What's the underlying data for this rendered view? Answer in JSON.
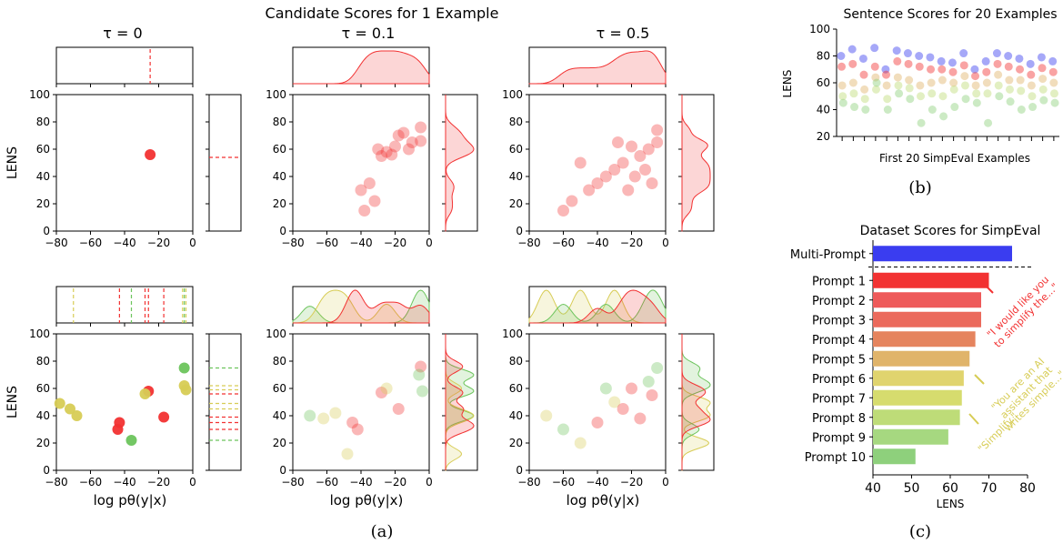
{
  "figure": {
    "panel_a_label": "(a)",
    "panel_b_label": "(b)",
    "panel_c_label": "(c)"
  },
  "colors": {
    "multi": "#3a3df0",
    "p1": "#f23232",
    "p2": "#ee5a5a",
    "p3": "#eb6a5c",
    "p4": "#e5845e",
    "p5": "#e0b46a",
    "p6": "#e0d46e",
    "p7": "#d6dc6e",
    "p8": "#bedc78",
    "p9": "#a6d880",
    "p10": "#8ed07c",
    "red": "#f23232",
    "green": "#6cc45c",
    "olive": "#d7cc55"
  },
  "chart_data": [
    {
      "type": "scatter",
      "panel": "a",
      "title": "Candidate Scores for 1 Example",
      "column_titles": [
        "τ = 0",
        "τ = 0.1",
        "τ = 0.5"
      ],
      "xlabel": "log pθ(y|x)",
      "ylabel": "LENS",
      "xlim": [
        -80,
        0
      ],
      "ylim": [
        0,
        100
      ],
      "xticks": [
        "−80",
        "−60",
        "−40",
        "−20",
        "0"
      ],
      "yticks": [
        "0",
        "20",
        "40",
        "60",
        "80",
        "100"
      ],
      "rows": [
        {
          "row": "single-prompt",
          "panels": [
            {
              "tau": "0",
              "points": [
                {
                  "x": -25,
                  "y": 56,
                  "c": "red"
                }
              ],
              "marginal_x_lines": [
                {
                  "x": -25,
                  "c": "red"
                }
              ],
              "marginal_y_lines": [
                {
                  "y": 54,
                  "c": "red"
                }
              ]
            },
            {
              "tau": "0.1",
              "points": [
                {
                  "x": -5,
                  "y": 76,
                  "c": "red"
                },
                {
                  "x": -5,
                  "y": 66,
                  "c": "red"
                },
                {
                  "x": -18,
                  "y": 70,
                  "c": "red"
                },
                {
                  "x": -20,
                  "y": 62,
                  "c": "red"
                },
                {
                  "x": -25,
                  "y": 58,
                  "c": "red"
                },
                {
                  "x": -22,
                  "y": 56,
                  "c": "red"
                },
                {
                  "x": -28,
                  "y": 55,
                  "c": "red"
                },
                {
                  "x": -30,
                  "y": 60,
                  "c": "red"
                },
                {
                  "x": -15,
                  "y": 72,
                  "c": "red"
                },
                {
                  "x": -10,
                  "y": 65,
                  "c": "red"
                },
                {
                  "x": -35,
                  "y": 35,
                  "c": "red"
                },
                {
                  "x": -40,
                  "y": 30,
                  "c": "red"
                },
                {
                  "x": -32,
                  "y": 22,
                  "c": "red"
                },
                {
                  "x": -38,
                  "y": 15,
                  "c": "red"
                },
                {
                  "x": -12,
                  "y": 60,
                  "c": "red"
                }
              ]
            },
            {
              "tau": "0.5",
              "points": [
                {
                  "x": -5,
                  "y": 74,
                  "c": "red"
                },
                {
                  "x": -5,
                  "y": 65,
                  "c": "red"
                },
                {
                  "x": -10,
                  "y": 60,
                  "c": "red"
                },
                {
                  "x": -15,
                  "y": 55,
                  "c": "red"
                },
                {
                  "x": -20,
                  "y": 62,
                  "c": "red"
                },
                {
                  "x": -25,
                  "y": 50,
                  "c": "red"
                },
                {
                  "x": -30,
                  "y": 45,
                  "c": "red"
                },
                {
                  "x": -35,
                  "y": 40,
                  "c": "red"
                },
                {
                  "x": -40,
                  "y": 35,
                  "c": "red"
                },
                {
                  "x": -45,
                  "y": 30,
                  "c": "red"
                },
                {
                  "x": -55,
                  "y": 22,
                  "c": "red"
                },
                {
                  "x": -60,
                  "y": 15,
                  "c": "red"
                },
                {
                  "x": -22,
                  "y": 30,
                  "c": "red"
                },
                {
                  "x": -18,
                  "y": 40,
                  "c": "red"
                },
                {
                  "x": -28,
                  "y": 65,
                  "c": "red"
                },
                {
                  "x": -12,
                  "y": 45,
                  "c": "red"
                },
                {
                  "x": -8,
                  "y": 35,
                  "c": "red"
                },
                {
                  "x": -50,
                  "y": 50,
                  "c": "red"
                }
              ]
            }
          ]
        },
        {
          "row": "multi-prompt",
          "panels": [
            {
              "tau": "0",
              "points": [
                {
                  "x": -78,
                  "y": 49,
                  "c": "olive"
                },
                {
                  "x": -72,
                  "y": 45,
                  "c": "olive"
                },
                {
                  "x": -68,
                  "y": 40,
                  "c": "olive"
                },
                {
                  "x": -43,
                  "y": 35,
                  "c": "red"
                },
                {
                  "x": -44,
                  "y": 30,
                  "c": "red"
                },
                {
                  "x": -36,
                  "y": 22,
                  "c": "green"
                },
                {
                  "x": -26,
                  "y": 58,
                  "c": "red"
                },
                {
                  "x": -28,
                  "y": 56,
                  "c": "olive"
                },
                {
                  "x": -17,
                  "y": 39,
                  "c": "red"
                },
                {
                  "x": -5,
                  "y": 75,
                  "c": "green"
                },
                {
                  "x": -5,
                  "y": 62,
                  "c": "olive"
                },
                {
                  "x": -4,
                  "y": 59,
                  "c": "olive"
                }
              ],
              "marginal_x_lines": [
                {
                  "x": -70,
                  "c": "olive"
                },
                {
                  "x": -43,
                  "c": "red"
                },
                {
                  "x": -36,
                  "c": "green"
                },
                {
                  "x": -28,
                  "c": "red"
                },
                {
                  "x": -26,
                  "c": "red"
                },
                {
                  "x": -17,
                  "c": "red"
                },
                {
                  "x": -6,
                  "c": "olive"
                },
                {
                  "x": -5,
                  "c": "green"
                },
                {
                  "x": -4,
                  "c": "olive"
                }
              ],
              "marginal_y_lines": [
                {
                  "y": 75,
                  "c": "green"
                },
                {
                  "y": 62,
                  "c": "olive"
                },
                {
                  "y": 59,
                  "c": "olive"
                },
                {
                  "y": 56,
                  "c": "red"
                },
                {
                  "y": 49,
                  "c": "olive"
                },
                {
                  "y": 45,
                  "c": "olive"
                },
                {
                  "y": 39,
                  "c": "red"
                },
                {
                  "y": 35,
                  "c": "red"
                },
                {
                  "y": 30,
                  "c": "red"
                },
                {
                  "y": 22,
                  "c": "green"
                }
              ]
            },
            {
              "tau": "0.1",
              "points": [
                {
                  "x": -70,
                  "y": 40,
                  "c": "green"
                },
                {
                  "x": -62,
                  "y": 38,
                  "c": "olive"
                },
                {
                  "x": -45,
                  "y": 35,
                  "c": "red"
                },
                {
                  "x": -42,
                  "y": 30,
                  "c": "red"
                },
                {
                  "x": -48,
                  "y": 12,
                  "c": "olive"
                },
                {
                  "x": -28,
                  "y": 57,
                  "c": "red"
                },
                {
                  "x": -25,
                  "y": 60,
                  "c": "olive"
                },
                {
                  "x": -5,
                  "y": 76,
                  "c": "red"
                },
                {
                  "x": -6,
                  "y": 70,
                  "c": "green"
                },
                {
                  "x": -4,
                  "y": 58,
                  "c": "green"
                },
                {
                  "x": -18,
                  "y": 45,
                  "c": "red"
                },
                {
                  "x": -55,
                  "y": 42,
                  "c": "olive"
                }
              ]
            },
            {
              "tau": "0.5",
              "points": [
                {
                  "x": -70,
                  "y": 40,
                  "c": "olive"
                },
                {
                  "x": -60,
                  "y": 30,
                  "c": "green"
                },
                {
                  "x": -50,
                  "y": 20,
                  "c": "olive"
                },
                {
                  "x": -40,
                  "y": 35,
                  "c": "red"
                },
                {
                  "x": -30,
                  "y": 50,
                  "c": "olive"
                },
                {
                  "x": -20,
                  "y": 60,
                  "c": "red"
                },
                {
                  "x": -15,
                  "y": 38,
                  "c": "red"
                },
                {
                  "x": -10,
                  "y": 65,
                  "c": "green"
                },
                {
                  "x": -5,
                  "y": 75,
                  "c": "green"
                },
                {
                  "x": -8,
                  "y": 55,
                  "c": "red"
                },
                {
                  "x": -25,
                  "y": 45,
                  "c": "red"
                },
                {
                  "x": -35,
                  "y": 60,
                  "c": "green"
                }
              ]
            }
          ]
        }
      ]
    },
    {
      "type": "scatter",
      "panel": "b",
      "title": "Sentence Scores for 20 Examples",
      "xlabel": "First 20 SimpEval Examples",
      "ylabel": "LENS",
      "ylim": [
        20,
        100
      ],
      "yticks": [
        "20",
        "40",
        "60",
        "80",
        "100"
      ],
      "n_examples": 20,
      "examples": [
        [
          80,
          72,
          58,
          50,
          45
        ],
        [
          85,
          74,
          60,
          52,
          42
        ],
        [
          78,
          66,
          55,
          48,
          40
        ],
        [
          86,
          72,
          64,
          55,
          60
        ],
        [
          70,
          66,
          58,
          48,
          40
        ],
        [
          84,
          76,
          64,
          58,
          52
        ],
        [
          82,
          74,
          62,
          56,
          48
        ],
        [
          80,
          72,
          58,
          50,
          30
        ],
        [
          79,
          70,
          60,
          52,
          40
        ],
        [
          76,
          70,
          62,
          50,
          35
        ],
        [
          75,
          68,
          60,
          55,
          42
        ],
        [
          82,
          73,
          65,
          58,
          48
        ],
        [
          70,
          65,
          58,
          52,
          45
        ],
        [
          76,
          68,
          60,
          52,
          30
        ],
        [
          82,
          74,
          66,
          58,
          50
        ],
        [
          80,
          72,
          62,
          55,
          46
        ],
        [
          78,
          70,
          62,
          54,
          40
        ],
        [
          74,
          66,
          58,
          50,
          42
        ],
        [
          79,
          71,
          63,
          55,
          47
        ],
        [
          76,
          68,
          60,
          52,
          45
        ]
      ],
      "series_colors": [
        "multi",
        "p1",
        "p5",
        "p8",
        "p10"
      ]
    },
    {
      "type": "bar",
      "panel": "c",
      "orientation": "horizontal",
      "title": "Dataset Scores for SimpEval",
      "xlabel": "LENS",
      "xlim": [
        40,
        80
      ],
      "xticks": [
        "40",
        "50",
        "60",
        "70",
        "80"
      ],
      "categories": [
        "Multi-Prompt",
        "Prompt 1",
        "Prompt 2",
        "Prompt 3",
        "Prompt 4",
        "Prompt 5",
        "Prompt 6",
        "Prompt 7",
        "Prompt 8",
        "Prompt 9",
        "Prompt 10"
      ],
      "values": [
        76,
        70,
        68,
        68,
        66.5,
        65,
        63.5,
        63,
        62.5,
        59.5,
        51
      ],
      "bar_colors": [
        "multi",
        "p1",
        "p2",
        "p3",
        "p4",
        "p5",
        "p6",
        "p7",
        "p8",
        "p9",
        "p10"
      ],
      "annotations": [
        {
          "text": "\"I would like you\nto simplify the...\"",
          "color": "red"
        },
        {
          "text": "\"You are an AI\nassistant that\nwrites simple...\"",
          "color": "olive"
        },
        {
          "text": "\"Simplify.\"",
          "color": "olive"
        }
      ]
    }
  ]
}
